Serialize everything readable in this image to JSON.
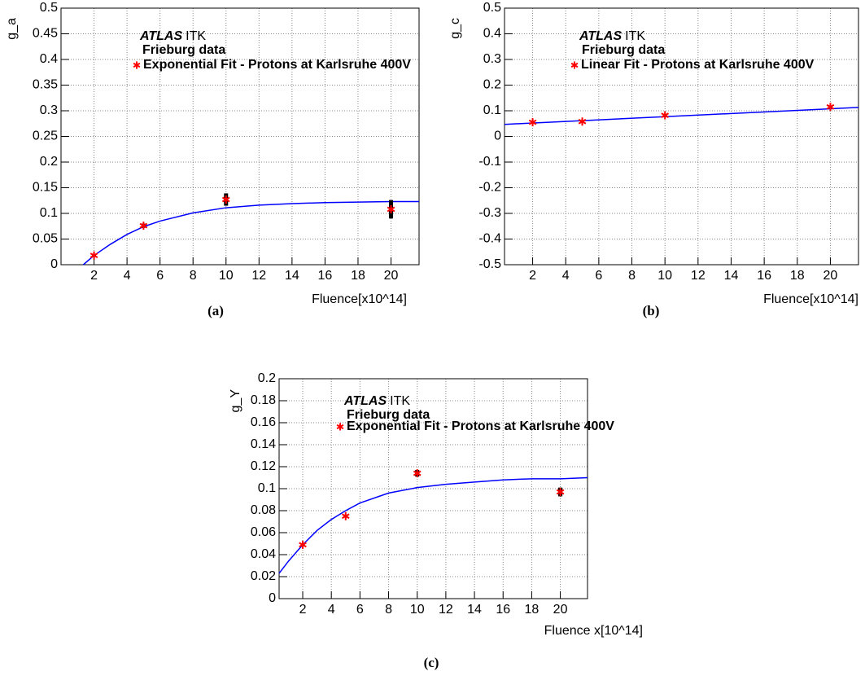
{
  "chart_data": [
    {
      "type": "scatter",
      "y_label": "g_a",
      "x_label": "Fluence[x10^14]",
      "caption": "(a)",
      "atlas": "ATLAS",
      "itk": "ITK",
      "subtitle": "Frieburg data",
      "xlim": [
        0,
        21.7
      ],
      "ylim": [
        0,
        0.5
      ],
      "xticks": [
        2,
        4,
        6,
        8,
        10,
        12,
        14,
        16,
        18,
        20
      ],
      "yticks": [
        0,
        0.05,
        0.1,
        0.15,
        0.2,
        0.25,
        0.3,
        0.35,
        0.4,
        0.45,
        0.5
      ],
      "grid": true,
      "series": [
        {
          "name": "Exponential Fit - Protons at Karlsruhe 400V",
          "color": "#ff0000",
          "error_color": "#000000",
          "x": [
            2,
            5,
            10,
            20
          ],
          "values": [
            0.018,
            0.076,
            0.127,
            0.108
          ],
          "errors": [
            0.003,
            0.004,
            0.012,
            0.018
          ]
        }
      ],
      "fit": {
        "color": "#0000ff",
        "x": [
          1.35,
          2,
          3,
          4,
          5,
          6,
          8,
          10,
          12,
          14,
          16,
          18,
          20,
          21.7
        ],
        "values": [
          0,
          0.018,
          0.04,
          0.059,
          0.074,
          0.085,
          0.101,
          0.111,
          0.116,
          0.119,
          0.121,
          0.122,
          0.123,
          0.123
        ]
      }
    },
    {
      "type": "scatter",
      "y_label": "g_c",
      "x_label": "Fluence[x10^14]",
      "caption": "(b)",
      "atlas": "ATLAS",
      "itk": "ITK",
      "subtitle": "Frieburg data",
      "xlim": [
        0.3,
        21.7
      ],
      "ylim": [
        -0.5,
        0.5
      ],
      "xticks": [
        2,
        4,
        6,
        8,
        10,
        12,
        14,
        16,
        18,
        20
      ],
      "yticks": [
        -0.5,
        -0.4,
        -0.3,
        -0.2,
        -0.1,
        0,
        0.1,
        0.2,
        0.3,
        0.4,
        0.5
      ],
      "grid": true,
      "series": [
        {
          "name": "Linear Fit - Protons at Karlsruhe 400V",
          "color": "#ff0000",
          "error_color": "#000000",
          "x": [
            2,
            5,
            10,
            20
          ],
          "values": [
            0.055,
            0.058,
            0.082,
            0.115
          ],
          "errors": [
            0.004,
            0.004,
            0.004,
            0.004
          ]
        }
      ],
      "fit": {
        "color": "#0000ff",
        "x": [
          0.3,
          21.7
        ],
        "values": [
          0.047,
          0.113
        ]
      }
    },
    {
      "type": "scatter",
      "y_label": "g_Y",
      "x_label": "Fluence x[10^14]",
      "caption": "(c)",
      "atlas": "ATLAS",
      "itk": "ITK",
      "subtitle": "Frieburg data",
      "xlim": [
        0.35,
        21.9
      ],
      "ylim": [
        0,
        0.2
      ],
      "xticks": [
        2,
        4,
        6,
        8,
        10,
        12,
        14,
        16,
        18,
        20
      ],
      "yticks": [
        0,
        0.02,
        0.04,
        0.06,
        0.08,
        0.1,
        0.12,
        0.14,
        0.16,
        0.18,
        0.2
      ],
      "grid": true,
      "series": [
        {
          "name": "Exponential Fit - Protons at Karlsruhe 400V",
          "color": "#ff0000",
          "error_color": "#000000",
          "x": [
            2,
            5,
            10,
            20
          ],
          "values": [
            0.049,
            0.075,
            0.114,
            0.097
          ],
          "errors": [
            0.001,
            0.001,
            0.003,
            0.004
          ]
        }
      ],
      "fit": {
        "color": "#0000ff",
        "x": [
          0.35,
          1,
          2,
          3,
          4,
          5,
          6,
          8,
          10,
          12,
          14,
          16,
          18,
          20,
          21.9
        ],
        "values": [
          0.023,
          0.034,
          0.049,
          0.062,
          0.072,
          0.08,
          0.087,
          0.096,
          0.101,
          0.104,
          0.106,
          0.108,
          0.109,
          0.109,
          0.11
        ]
      }
    }
  ]
}
